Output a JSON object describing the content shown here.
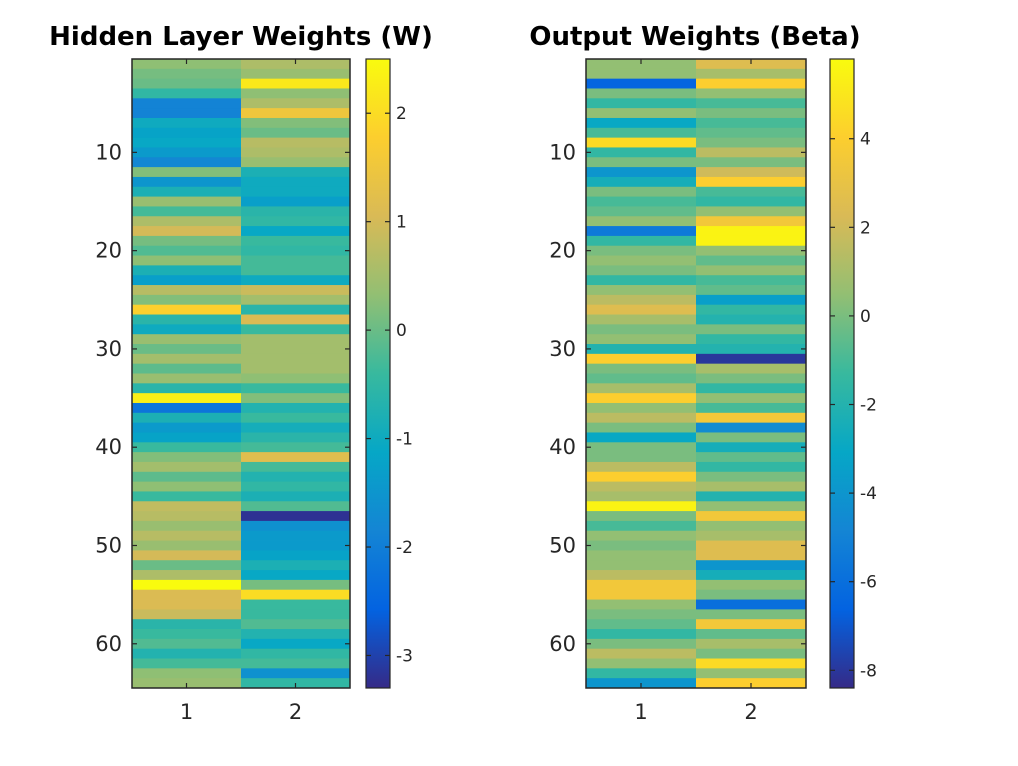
{
  "chart_data": [
    {
      "type": "heatmap",
      "title": "Hidden Layer Weights (W)",
      "xlabel": "",
      "ylabel": "",
      "rows": 64,
      "columns": [
        1,
        2
      ],
      "xlim": [
        0.5,
        2.5
      ],
      "ylim": [
        0.5,
        64.5
      ],
      "y_reversed": true,
      "xticks": [
        1,
        2
      ],
      "yticks": [
        10,
        20,
        30,
        40,
        50,
        60
      ],
      "colormap": "parula",
      "clim": [
        -3.3,
        2.5
      ],
      "colorbar_ticks": [
        -3,
        -2,
        -1,
        0,
        1,
        2
      ],
      "values": [
        [
          0.3,
          0.6
        ],
        [
          0.1,
          0.4
        ],
        [
          0.0,
          2.2
        ],
        [
          -0.5,
          0.3
        ],
        [
          -1.9,
          0.6
        ],
        [
          -1.9,
          1.5
        ],
        [
          -1.0,
          0.2
        ],
        [
          -1.2,
          0.0
        ],
        [
          -1.1,
          0.7
        ],
        [
          -1.4,
          0.6
        ],
        [
          -1.8,
          0.4
        ],
        [
          0.2,
          -0.8
        ],
        [
          -1.5,
          -1.0
        ],
        [
          -0.8,
          -1.0
        ],
        [
          0.4,
          -1.3
        ],
        [
          -0.3,
          -0.6
        ],
        [
          0.6,
          -0.5
        ],
        [
          1.0,
          -1.1
        ],
        [
          0.1,
          -0.4
        ],
        [
          -0.2,
          -0.5
        ],
        [
          0.3,
          -0.3
        ],
        [
          -0.8,
          -0.3
        ],
        [
          -1.3,
          -1.0
        ],
        [
          0.7,
          0.9
        ],
        [
          0.2,
          0.5
        ],
        [
          1.8,
          -0.6
        ],
        [
          -0.6,
          1.1
        ],
        [
          -1.0,
          -0.4
        ],
        [
          0.4,
          0.5
        ],
        [
          0.0,
          0.5
        ],
        [
          0.5,
          0.5
        ],
        [
          -0.1,
          0.5
        ],
        [
          0.4,
          0.3
        ],
        [
          -0.6,
          -0.4
        ],
        [
          2.3,
          0.2
        ],
        [
          -2.2,
          -0.7
        ],
        [
          -0.8,
          -0.4
        ],
        [
          -1.4,
          -0.9
        ],
        [
          -1.2,
          -0.6
        ],
        [
          -0.4,
          -0.3
        ],
        [
          0.2,
          1.2
        ],
        [
          0.5,
          -0.3
        ],
        [
          -0.1,
          -0.7
        ],
        [
          0.3,
          -0.5
        ],
        [
          -0.4,
          -0.8
        ],
        [
          0.8,
          -0.2
        ],
        [
          0.7,
          -3.2
        ],
        [
          0.4,
          -1.6
        ],
        [
          0.7,
          -1.4
        ],
        [
          0.4,
          -1.4
        ],
        [
          1.0,
          -1.2
        ],
        [
          0.0,
          -0.8
        ],
        [
          0.6,
          -1.1
        ],
        [
          2.5,
          0.1
        ],
        [
          1.1,
          2.0
        ],
        [
          1.1,
          -0.4
        ],
        [
          0.9,
          -0.4
        ],
        [
          -0.6,
          -0.2
        ],
        [
          -0.4,
          -0.7
        ],
        [
          -0.2,
          -1.1
        ],
        [
          -0.7,
          -0.5
        ],
        [
          -0.3,
          -0.3
        ],
        [
          0.3,
          -1.6
        ],
        [
          0.4,
          -0.5
        ]
      ]
    },
    {
      "type": "heatmap",
      "title": "Output Weights (Beta)",
      "xlabel": "",
      "ylabel": "",
      "rows": 64,
      "columns": [
        1,
        2
      ],
      "xlim": [
        0.5,
        2.5
      ],
      "ylim": [
        0.5,
        64.5
      ],
      "y_reversed": true,
      "xticks": [
        1,
        2
      ],
      "yticks": [
        10,
        20,
        30,
        40,
        50,
        60
      ],
      "colormap": "parula",
      "clim": [
        -8.4,
        5.8
      ],
      "colorbar_ticks": [
        -8,
        -6,
        -4,
        -2,
        0,
        2,
        4
      ],
      "values": [
        [
          0.5,
          2.5
        ],
        [
          0.5,
          1.0
        ],
        [
          -6.5,
          4.0
        ],
        [
          0.0,
          0.5
        ],
        [
          -1.5,
          -1.0
        ],
        [
          0.5,
          0.0
        ],
        [
          -3.0,
          -1.0
        ],
        [
          -1.0,
          -0.5
        ],
        [
          4.5,
          0.0
        ],
        [
          -1.5,
          1.5
        ],
        [
          0.0,
          0.0
        ],
        [
          -4.0,
          2.0
        ],
        [
          -2.5,
          4.0
        ],
        [
          0.0,
          -1.0
        ],
        [
          -1.0,
          -1.5
        ],
        [
          -0.5,
          0.5
        ],
        [
          0.5,
          3.5
        ],
        [
          -5.5,
          5.5
        ],
        [
          -1.5,
          5.5
        ],
        [
          0.0,
          0.5
        ],
        [
          0.5,
          -0.5
        ],
        [
          0.0,
          0.5
        ],
        [
          -1.5,
          -1.0
        ],
        [
          0.5,
          -0.5
        ],
        [
          1.5,
          -3.5
        ],
        [
          2.5,
          -1.5
        ],
        [
          1.0,
          -2.0
        ],
        [
          0.0,
          0.0
        ],
        [
          0.5,
          -1.5
        ],
        [
          -2.0,
          -2.0
        ],
        [
          4.0,
          -8.0
        ],
        [
          0.0,
          1.0
        ],
        [
          -0.5,
          0.0
        ],
        [
          1.0,
          -1.5
        ],
        [
          4.0,
          0.5
        ],
        [
          0.5,
          -1.0
        ],
        [
          1.5,
          3.5
        ],
        [
          0.0,
          -4.5
        ],
        [
          -3.0,
          0.0
        ],
        [
          0.0,
          -2.5
        ],
        [
          0.0,
          -0.5
        ],
        [
          1.5,
          -1.5
        ],
        [
          4.0,
          0.0
        ],
        [
          1.5,
          1.0
        ],
        [
          1.0,
          -2.0
        ],
        [
          5.5,
          0.5
        ],
        [
          0.0,
          3.5
        ],
        [
          -1.0,
          0.5
        ],
        [
          0.5,
          1.0
        ],
        [
          0.0,
          2.5
        ],
        [
          0.5,
          2.5
        ],
        [
          0.5,
          -4.0
        ],
        [
          1.5,
          -2.5
        ],
        [
          3.5,
          0.5
        ],
        [
          3.5,
          0.0
        ],
        [
          0.5,
          -6.0
        ],
        [
          0.0,
          0.0
        ],
        [
          -0.5,
          3.5
        ],
        [
          -1.5,
          -0.5
        ],
        [
          0.0,
          1.0
        ],
        [
          1.5,
          0.0
        ],
        [
          0.5,
          4.5
        ],
        [
          -1.5,
          0.5
        ],
        [
          -4.0,
          4.0
        ]
      ]
    }
  ]
}
